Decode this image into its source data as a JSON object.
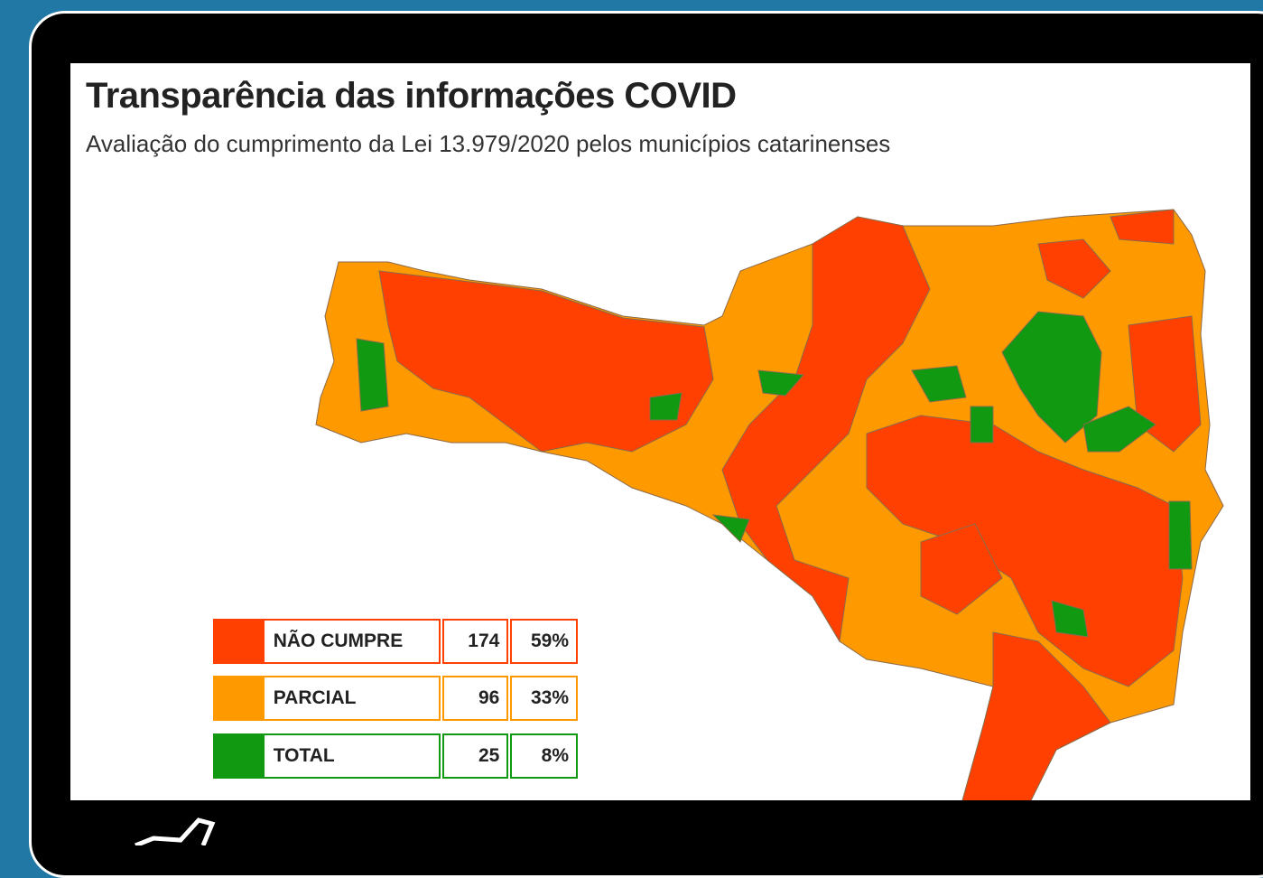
{
  "header": {
    "title": "Transparência das informações COVID",
    "subtitle": "Avaliação do cumprimento da Lei 13.979/2020 pelos municípios catarinenses"
  },
  "legend": {
    "rows": [
      {
        "label": "NÃO CUMPRE",
        "count": "174",
        "percent": "59%",
        "color": "#ff4000"
      },
      {
        "label": "PARCIAL",
        "count": "96",
        "percent": "33%",
        "color": "#ff9900"
      },
      {
        "label": "TOTAL",
        "count": "25",
        "percent": "8%",
        "color": "#119911"
      }
    ]
  }
}
